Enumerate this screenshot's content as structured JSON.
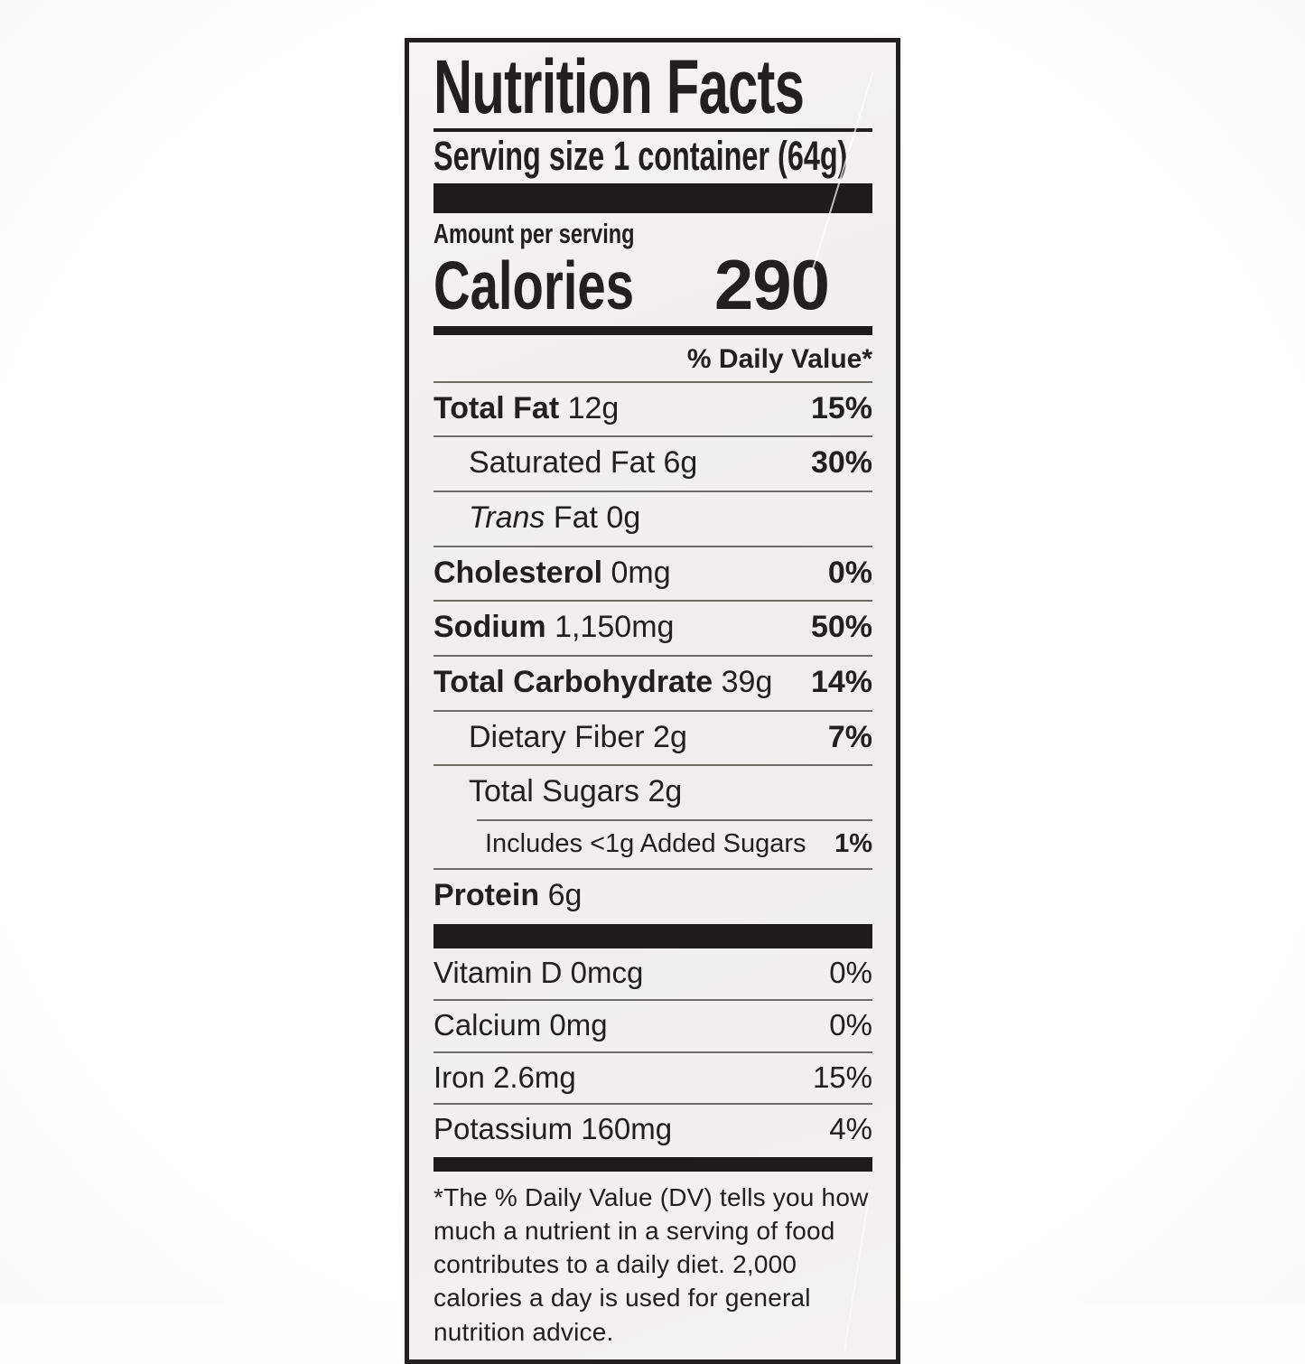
{
  "label": {
    "title": "Nutrition Facts",
    "serving_size_label": "Serving size",
    "serving_size_value": "1 container (64g)",
    "amount_per_serving": "Amount per serving",
    "calories_label": "Calories",
    "calories_value": "290",
    "daily_value_header": "% Daily Value*",
    "ink_color": "#21201d",
    "paper_color": "#f2f1ef",
    "nutrients": [
      {
        "bold": "Total Fat",
        "regular": "12g",
        "dv": "15%",
        "dv_bold": true,
        "indent": 0
      },
      {
        "regular": "Saturated Fat 6g",
        "dv": "30%",
        "dv_bold": true,
        "indent": 1
      },
      {
        "italic": "Trans",
        "regular": "Fat 0g",
        "dv": "",
        "indent": 1
      },
      {
        "bold": "Cholesterol",
        "regular": "0mg",
        "dv": "0%",
        "dv_bold": true,
        "indent": 0
      },
      {
        "bold": "Sodium",
        "regular": "1,150mg",
        "dv": "50%",
        "dv_bold": true,
        "indent": 0
      },
      {
        "bold": "Total Carbohydrate",
        "regular": "39g",
        "dv": "14%",
        "dv_bold": true,
        "indent": 0
      },
      {
        "regular": "Dietary Fiber 2g",
        "dv": "7%",
        "dv_bold": true,
        "indent": 1
      },
      {
        "regular": "Total Sugars 2g",
        "dv": "",
        "indent": 1
      },
      {
        "regular": "Includes <1g Added Sugars",
        "dv": "1%",
        "dv_bold": true,
        "indent": 2,
        "small": true,
        "sep_indent": true
      },
      {
        "bold": "Protein",
        "regular": "6g",
        "dv": "",
        "indent": 0
      }
    ],
    "vitamins": [
      {
        "name": "Vitamin D",
        "amount": "0mcg",
        "dv": "0%"
      },
      {
        "name": "Calcium",
        "amount": "0mg",
        "dv": "0%"
      },
      {
        "name": "Iron",
        "amount": "2.6mg",
        "dv": "15%"
      },
      {
        "name": "Potassium",
        "amount": "160mg",
        "dv": "4%"
      }
    ],
    "footnote": "*The % Daily Value (DV) tells you how much a nutrient in a serving of food contributes to a daily diet. 2,000 calories a day is used for general nutrition advice."
  }
}
